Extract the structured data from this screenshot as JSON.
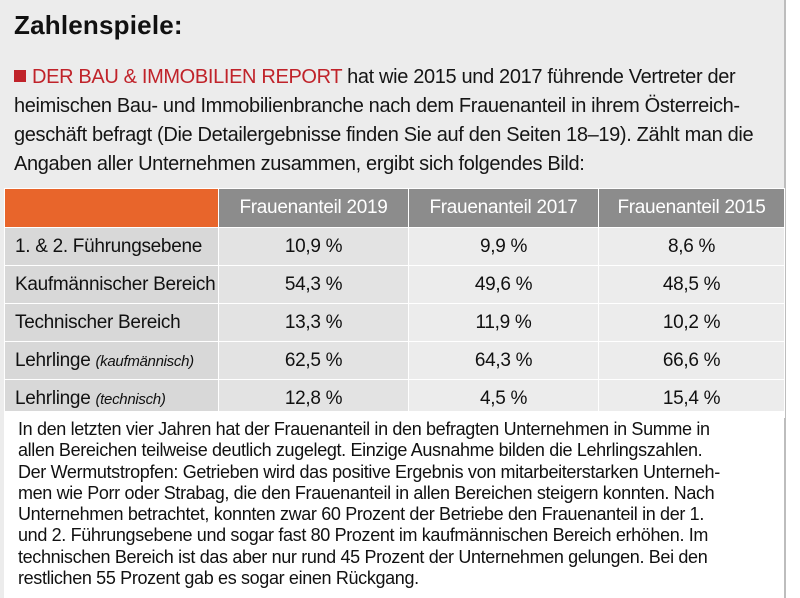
{
  "title": "Zahlenspiele:",
  "intro": {
    "brand": "DER BAU & IMMOBILIEN REPORT",
    "line1_rest": " hat wie 2015 und 2017 führende Vertreter der",
    "line2": "heimischen Bau- und Immobilienbranche nach dem Frauenanteil in ihrem Österreich-",
    "line3": "geschäft befragt (Die Detailergebnisse finden Sie auf den Seiten 18–19). Zählt man die",
    "line4": "Angaben aller Unternehmen zusammen, ergibt sich folgendes Bild:"
  },
  "table": {
    "headers": [
      "Frauenanteil 2019",
      "Frauenanteil 2017",
      "Frauenanteil 2015"
    ],
    "rows": [
      {
        "label": "1. & 2. Führungsebene",
        "sub": "",
        "values": [
          "10,9 %",
          "9,9 %",
          "8,6 %"
        ]
      },
      {
        "label": "Kaufmännischer Bereich",
        "sub": "",
        "values": [
          "54,3 %",
          "49,6 %",
          "48,5 %"
        ]
      },
      {
        "label": "Technischer Bereich",
        "sub": "",
        "values": [
          "13,3 %",
          "11,9 %",
          "10,2 %"
        ]
      },
      {
        "label": "Lehrlinge",
        "sub": "(kaufmännisch)",
        "values": [
          "62,5 %",
          "64,3 %",
          "66,6 %"
        ]
      },
      {
        "label": "Lehrlinge",
        "sub": "(technisch)",
        "values": [
          "12,8 %",
          "4,5 %",
          "15,4 %"
        ]
      }
    ]
  },
  "body": {
    "lines": [
      "In den letzten vier Jahren hat der Frauenanteil in den befragten Unternehmen in Summe in",
      "allen Bereichen teilweise deutlich zugelegt. Einzige Ausnahme bilden die Lehrlingszahlen.",
      "Der Wermutstropfen: Getrieben wird das positive Ergebnis von mitarbeiterstarken Unterneh-",
      "men wie Porr oder Strabag, die den Frauenanteil in allen Bereichen steigern konnten. Nach",
      "Unternehmen betrachtet, konnten zwar 60 Prozent der Betriebe den Frauenanteil in der 1.",
      "und 2. Führungsebene und sogar fast 80 Prozent im kaufmännischen Bereich erhöhen. Im",
      "technischen Bereich ist das aber nur rund 45 Prozent der Unternehmen gelungen. Bei den",
      "restlichen 55 Prozent gab es sogar einen Rückgang."
    ]
  },
  "colors": {
    "brand_red": "#c0232a",
    "header_orange": "#e8652b",
    "header_gray": "#8c8c8c"
  }
}
